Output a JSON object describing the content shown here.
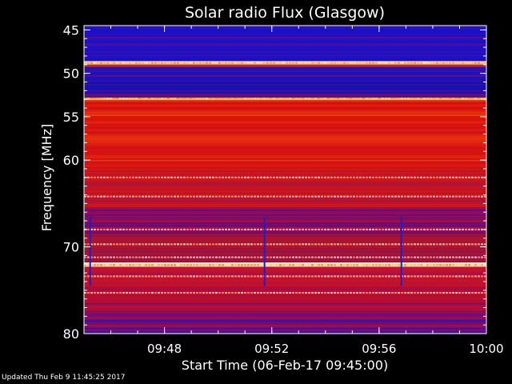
{
  "chart_data": {
    "type": "heatmap",
    "title": "Solar radio Flux (Glasgow)",
    "xlabel": "Start Time (06-Feb-17 09:45:00)",
    "ylabel": "Frequency [MHz]",
    "x_range_minutes": [
      0,
      15
    ],
    "x_ticks": [
      {
        "minute": 3,
        "label": "09:48"
      },
      {
        "minute": 7,
        "label": "09:52"
      },
      {
        "minute": 11,
        "label": "09:56"
      },
      {
        "minute": 15,
        "label": "10:00"
      }
    ],
    "y_range_mhz": [
      44.5,
      80
    ],
    "y_reversed": true,
    "y_ticks": [
      45,
      50,
      55,
      60,
      70,
      80
    ],
    "colormap": [
      "#1a10c8",
      "#b01040",
      "#e01810",
      "#ff7020",
      "#ffe8c0"
    ],
    "frequency_bands": [
      {
        "from": 44.5,
        "to": 48.6,
        "level": 0.02
      },
      {
        "from": 48.6,
        "to": 49.0,
        "level": 1.0
      },
      {
        "from": 49.0,
        "to": 49.3,
        "level": 0.45
      },
      {
        "from": 49.3,
        "to": 51.2,
        "level": 0.03
      },
      {
        "from": 51.2,
        "to": 52.4,
        "level": 0.0
      },
      {
        "from": 52.4,
        "to": 52.8,
        "level": 0.15
      },
      {
        "from": 52.8,
        "to": 53.1,
        "level": 0.85
      },
      {
        "from": 53.1,
        "to": 55.0,
        "level": 0.55
      },
      {
        "from": 55.0,
        "to": 61.0,
        "level": 0.5
      },
      {
        "from": 61.0,
        "to": 65.5,
        "level": 0.38
      },
      {
        "from": 65.5,
        "to": 68.5,
        "level": 0.22
      },
      {
        "from": 68.5,
        "to": 71.8,
        "level": 0.3
      },
      {
        "from": 71.8,
        "to": 72.3,
        "level": 1.0
      },
      {
        "from": 72.3,
        "to": 74.5,
        "level": 0.3
      },
      {
        "from": 74.5,
        "to": 77.5,
        "level": 0.25
      },
      {
        "from": 77.5,
        "to": 80.0,
        "level": 0.15
      }
    ],
    "bright_lines_mhz": [
      48.8,
      52.9,
      62.0,
      64.2,
      68.0,
      69.7,
      71.2,
      72.1,
      73.4,
      75.3
    ],
    "time_spikes_minutes": [
      0.2,
      6.7,
      11.8
    ]
  },
  "footer": {
    "updated": "Updated Thu Feb  9 11:45:25 2017"
  }
}
